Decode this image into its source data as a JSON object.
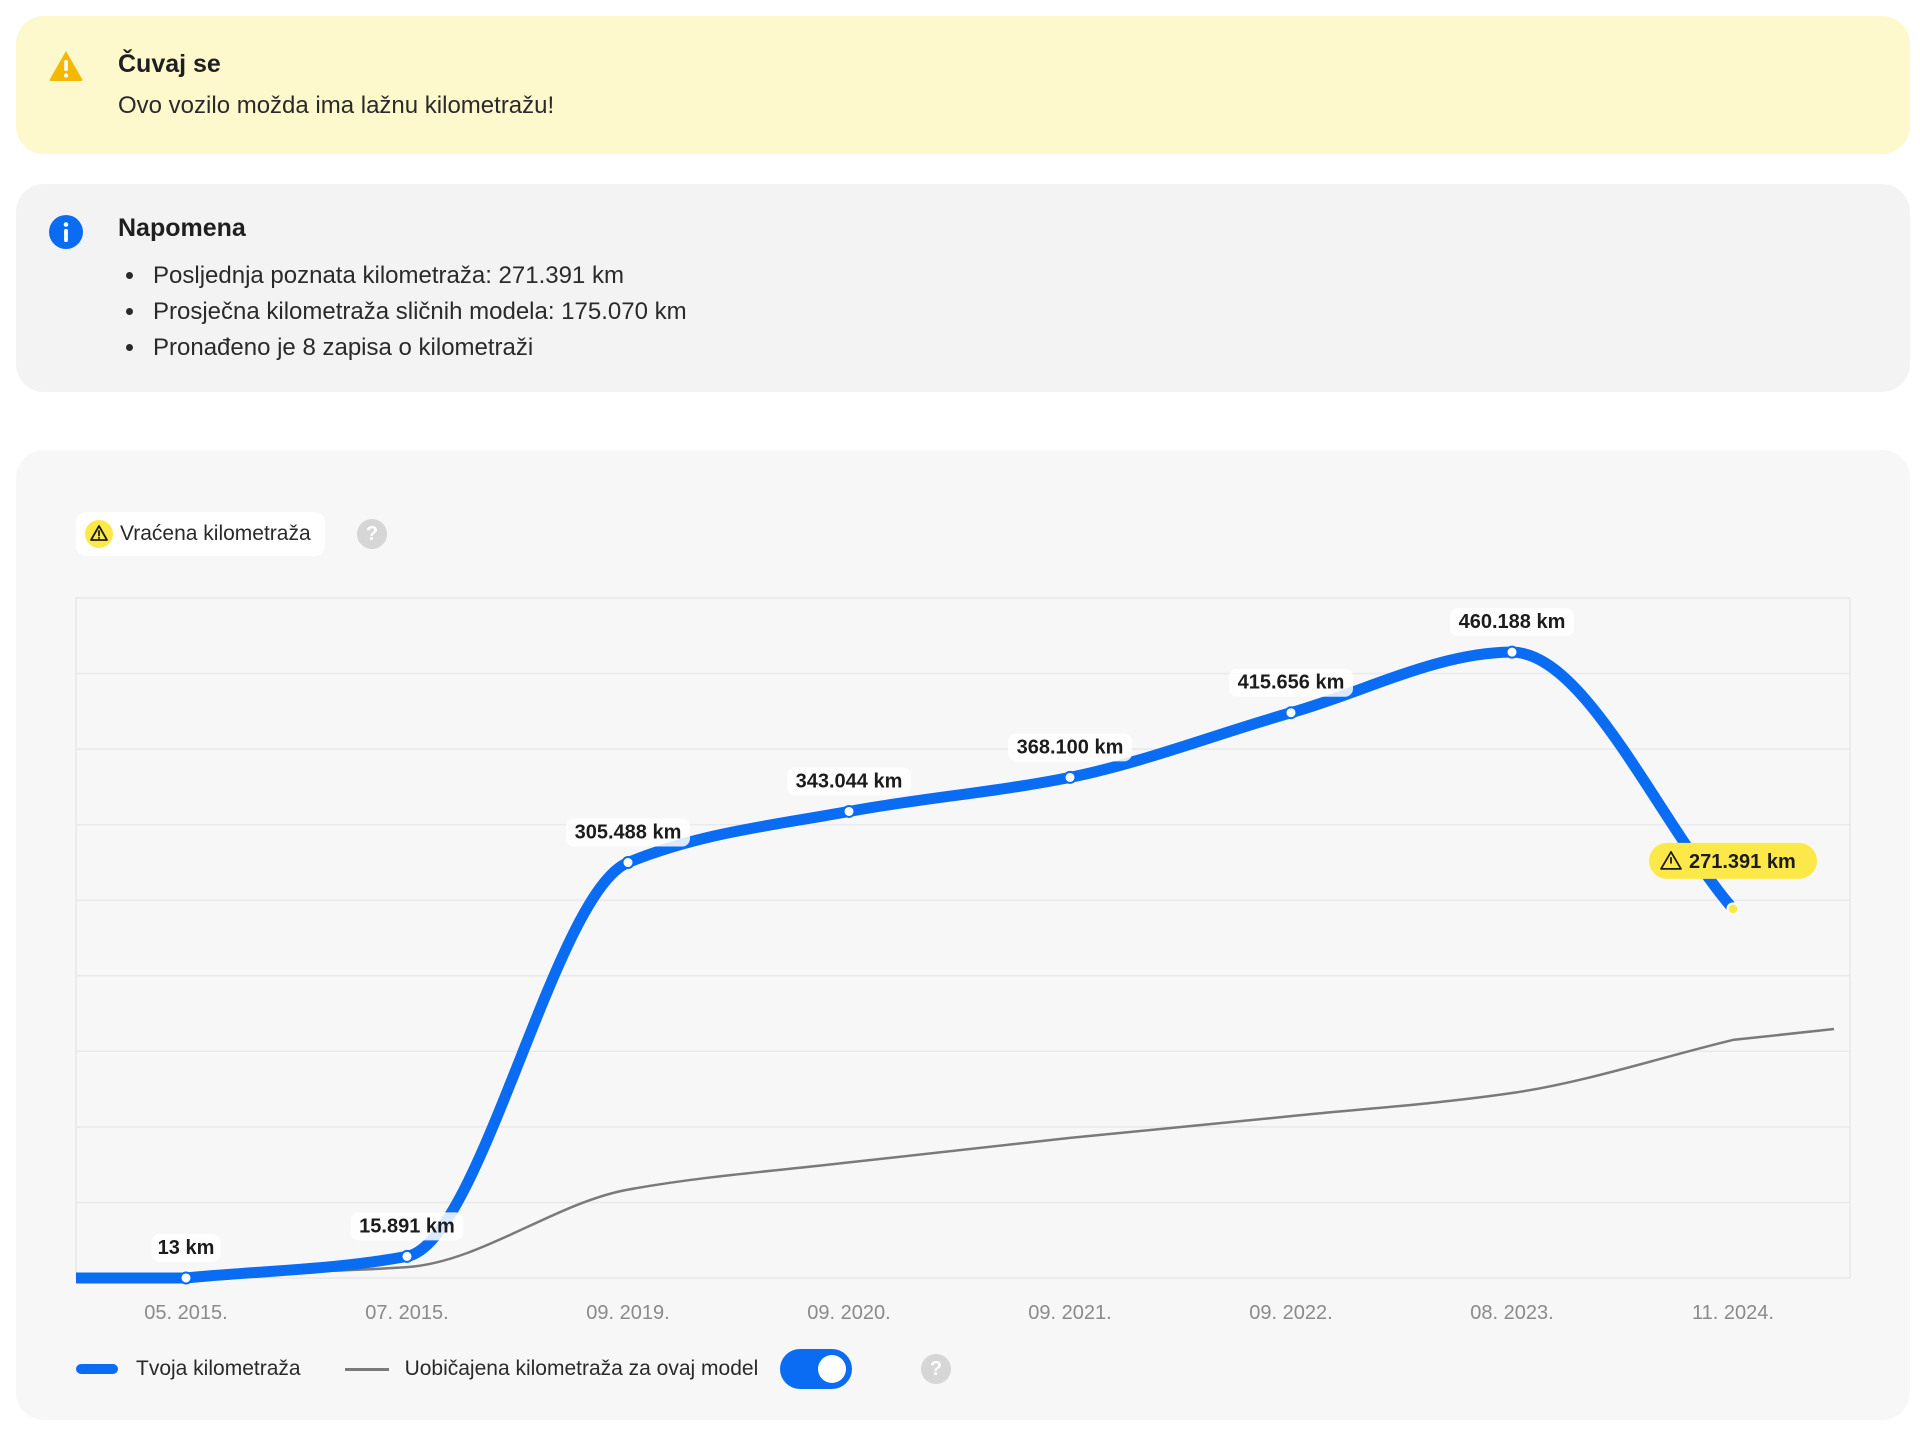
{
  "warning": {
    "title": "Čuvaj se",
    "text": "Ovo vozilo možda ima lažnu kilometražu!",
    "icon": "warning-triangle-icon",
    "color": "#f5b800"
  },
  "note": {
    "title": "Napomena",
    "icon": "info-icon",
    "color": "#0a6cf2",
    "items": [
      "Posljednja poznata kilometraža: 271.391 km",
      "Prosječna kilometraža sličnih modela: 175.070 km",
      "Pronađeno je 8 zapisa o kilometraži"
    ]
  },
  "badge": {
    "label": "Vraćena kilometraža",
    "icon": "warning-triangle-icon",
    "help": "?"
  },
  "legend": {
    "mine": "Tvoja kilometraža",
    "typical": "Uobičajena kilometraža za ovaj model",
    "toggle_on": true,
    "help": "?"
  },
  "chart_data": {
    "type": "line",
    "title": "",
    "xlabel": "",
    "ylabel": "",
    "categories": [
      "05. 2015.",
      "07. 2015.",
      "09. 2019.",
      "09. 2020.",
      "09. 2021.",
      "09. 2022.",
      "08. 2023.",
      "11. 2024."
    ],
    "grid": true,
    "legend_position": "bottom-left",
    "ylim": [
      0,
      500000
    ],
    "series": [
      {
        "name": "Tvoja kilometraža",
        "color": "#0a6cf2",
        "values": [
          13,
          15891,
          305488,
          343044,
          368100,
          415656,
          460188,
          271391
        ],
        "labels": [
          "13 km",
          "15.891 km",
          "305.488 km",
          "343.044 km",
          "368.100 km",
          "415.656 km",
          "460.188 km",
          "271.391 km"
        ],
        "flagged_index": 7,
        "flag_color": "#fde84a"
      },
      {
        "name": "Uobičajena kilometraža za ovaj model",
        "color": "#7a7a7a",
        "values": [
          2000,
          8000,
          65000,
          85000,
          103000,
          119000,
          136000,
          175070
        ]
      }
    ]
  }
}
